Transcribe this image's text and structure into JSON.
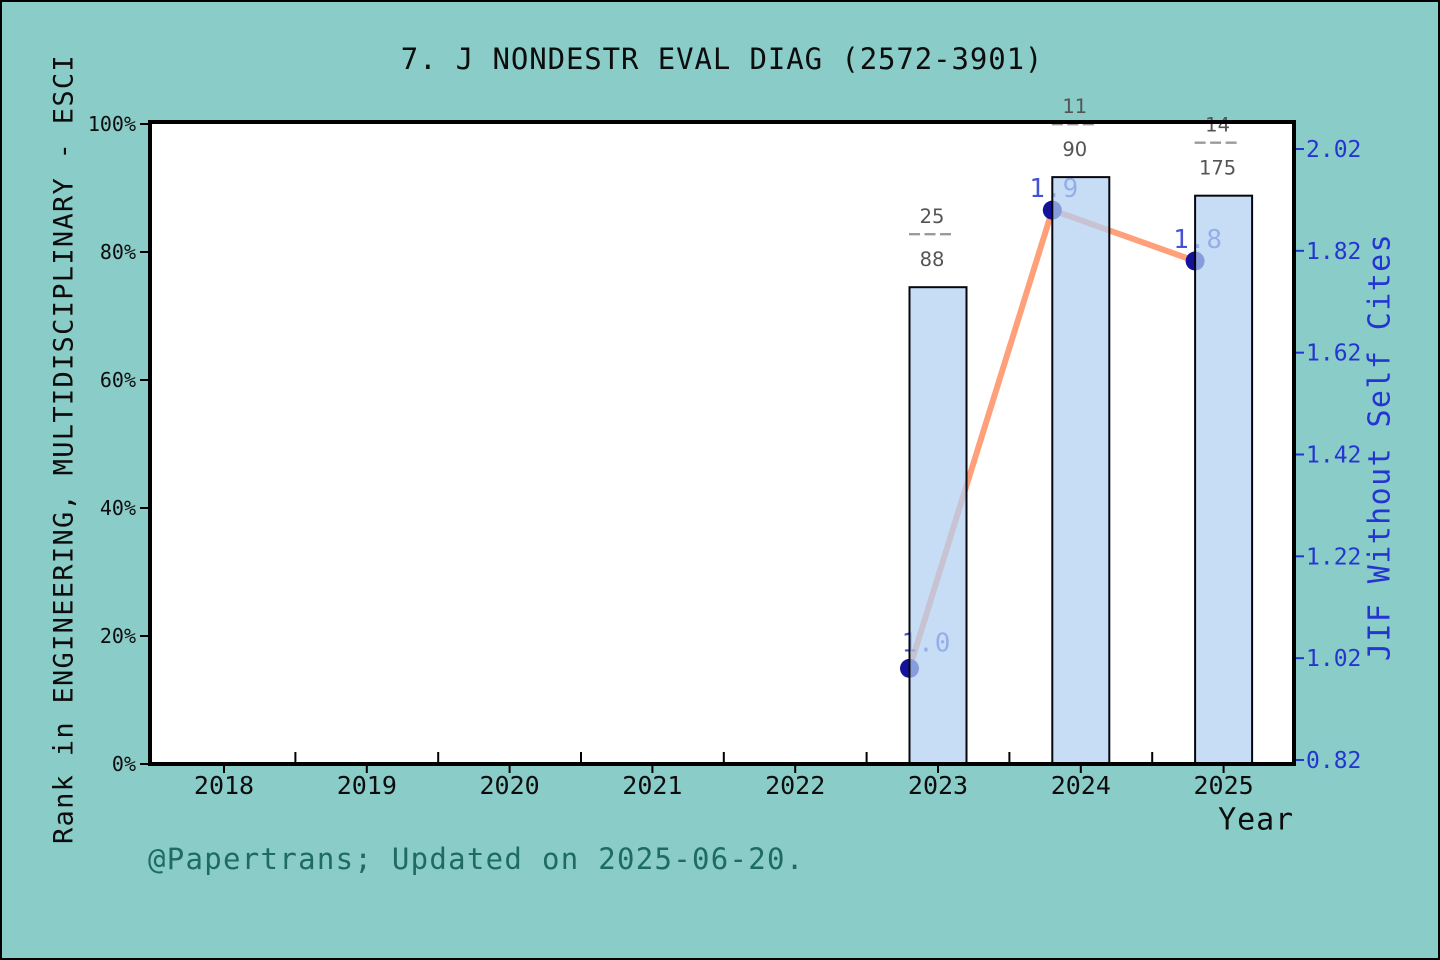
{
  "chart_data": {
    "type": "bar",
    "title": "7. J NONDESTR EVAL DIAG (2572-3901)",
    "footer": "@Papertrans; Updated on 2025-06-20.",
    "axes": {
      "x": {
        "label": "Year",
        "ticks": [
          "2018",
          "2019",
          "2020",
          "2021",
          "2022",
          "2023",
          "2024",
          "2025"
        ],
        "tick_values": [
          2018,
          2019,
          2020,
          2021,
          2022,
          2023,
          2024,
          2025
        ]
      },
      "left": {
        "label": "Rank in ENGINEERING, MULTIDISCIPLINARY - ESCI",
        "ticks": [
          "100%",
          "80%",
          "60%",
          "40%",
          "20%",
          "0%"
        ],
        "tick_values": [
          100,
          80,
          60,
          40,
          20,
          0
        ],
        "range": [
          0,
          100
        ]
      },
      "right": {
        "label": "JIF Without Self Cites",
        "ticks": [
          "2.02",
          "1.82",
          "1.62",
          "1.42",
          "1.22",
          "1.02",
          "0.82"
        ],
        "tick_values": [
          2.02,
          1.82,
          1.62,
          1.42,
          1.22,
          1.02,
          0.82
        ],
        "range": [
          0.82,
          2.02
        ]
      }
    },
    "bars": {
      "name": "Rank in category (percentile)",
      "years": [
        2023,
        2024,
        2025
      ],
      "rank_percent": [
        74.5,
        91.7,
        88.8
      ],
      "fraction_labels": [
        {
          "numerator": "25",
          "denominator": "88"
        },
        {
          "numerator": "11",
          "denominator": "90"
        },
        {
          "numerator": "14",
          "denominator": "175"
        }
      ]
    },
    "line": {
      "name": "JIF Without Self Cites",
      "years": [
        2023,
        2024,
        2025
      ],
      "values": [
        1.0,
        1.9,
        1.8
      ],
      "point_labels": [
        "1.0",
        "1.9",
        "1.8"
      ]
    },
    "legend": "none",
    "grid": false,
    "colors": {
      "background": "#8accc8",
      "plot_background": "#ffffff",
      "spine": "#000000",
      "bar_fill": "rgba(178,208,242,0.73)",
      "bar_edge": "#06060e",
      "line": "#ffa07a",
      "marker": "#14129b",
      "right_axis_blue": "#2535d2",
      "point_label_blue": "rgba(22,40,200,0.8)",
      "fraction_text": "#545454",
      "fraction_dash": "#9b9b9b",
      "footer_text": "#1e6b64",
      "tick_text": "#0d0d0d"
    }
  }
}
